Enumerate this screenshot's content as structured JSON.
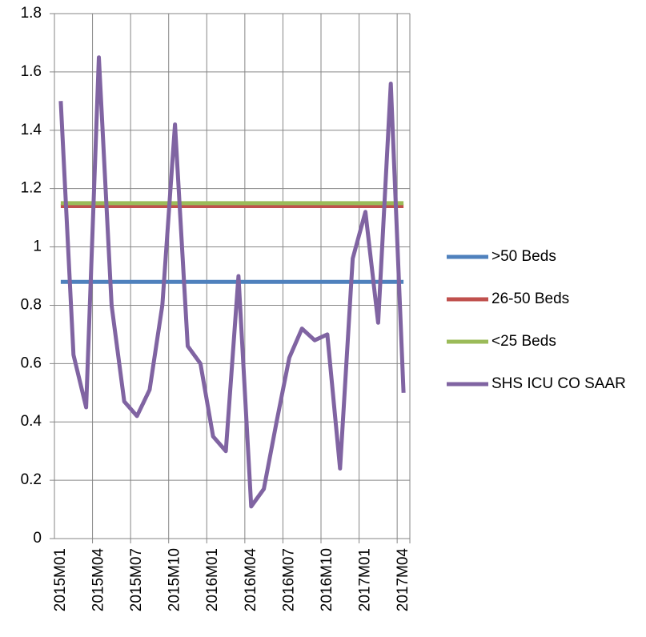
{
  "chart_data": {
    "type": "line",
    "categories": [
      "2015M01",
      null,
      null,
      "2015M04",
      null,
      null,
      "2015M07",
      null,
      null,
      "2015M10",
      null,
      null,
      "2016M01",
      null,
      null,
      "2016M04",
      null,
      null,
      "2016M07",
      null,
      null,
      "2016M10",
      null,
      null,
      "2017M01",
      null,
      null,
      "2017M04"
    ],
    "series": [
      {
        "name": ">50 Beds",
        "color": "#4f81bd",
        "values": [
          0.88,
          0.88,
          0.88,
          0.88,
          0.88,
          0.88,
          0.88,
          0.88,
          0.88,
          0.88,
          0.88,
          0.88,
          0.88,
          0.88,
          0.88,
          0.88,
          0.88,
          0.88,
          0.88,
          0.88,
          0.88,
          0.88,
          0.88,
          0.88,
          0.88,
          0.88,
          0.88,
          0.88
        ]
      },
      {
        "name": "26-50 Beds",
        "color": "#c0504d",
        "values": [
          1.14,
          1.14,
          1.14,
          1.14,
          1.14,
          1.14,
          1.14,
          1.14,
          1.14,
          1.14,
          1.14,
          1.14,
          1.14,
          1.14,
          1.14,
          1.14,
          1.14,
          1.14,
          1.14,
          1.14,
          1.14,
          1.14,
          1.14,
          1.14,
          1.14,
          1.14,
          1.14,
          1.14
        ]
      },
      {
        "name": "<25 Beds",
        "color": "#9bbb59",
        "values": [
          1.15,
          1.15,
          1.15,
          1.15,
          1.15,
          1.15,
          1.15,
          1.15,
          1.15,
          1.15,
          1.15,
          1.15,
          1.15,
          1.15,
          1.15,
          1.15,
          1.15,
          1.15,
          1.15,
          1.15,
          1.15,
          1.15,
          1.15,
          1.15,
          1.15,
          1.15,
          1.15,
          1.15
        ]
      },
      {
        "name": "SHS ICU CO SAAR",
        "color": "#8064a2",
        "values": [
          1.5,
          0.63,
          0.45,
          1.65,
          0.8,
          0.47,
          0.42,
          0.51,
          0.8,
          1.42,
          0.66,
          0.6,
          0.35,
          0.3,
          0.9,
          0.11,
          0.17,
          0.4,
          0.62,
          0.72,
          0.68,
          0.7,
          0.24,
          0.96,
          1.12,
          0.74,
          1.56,
          0.5
        ]
      }
    ],
    "ylim": [
      0,
      1.8
    ],
    "yticks": [
      0,
      0.2,
      0.4,
      0.6,
      0.8,
      1,
      1.2,
      1.4,
      1.6,
      1.8
    ],
    "grid": true,
    "legend": "right"
  }
}
